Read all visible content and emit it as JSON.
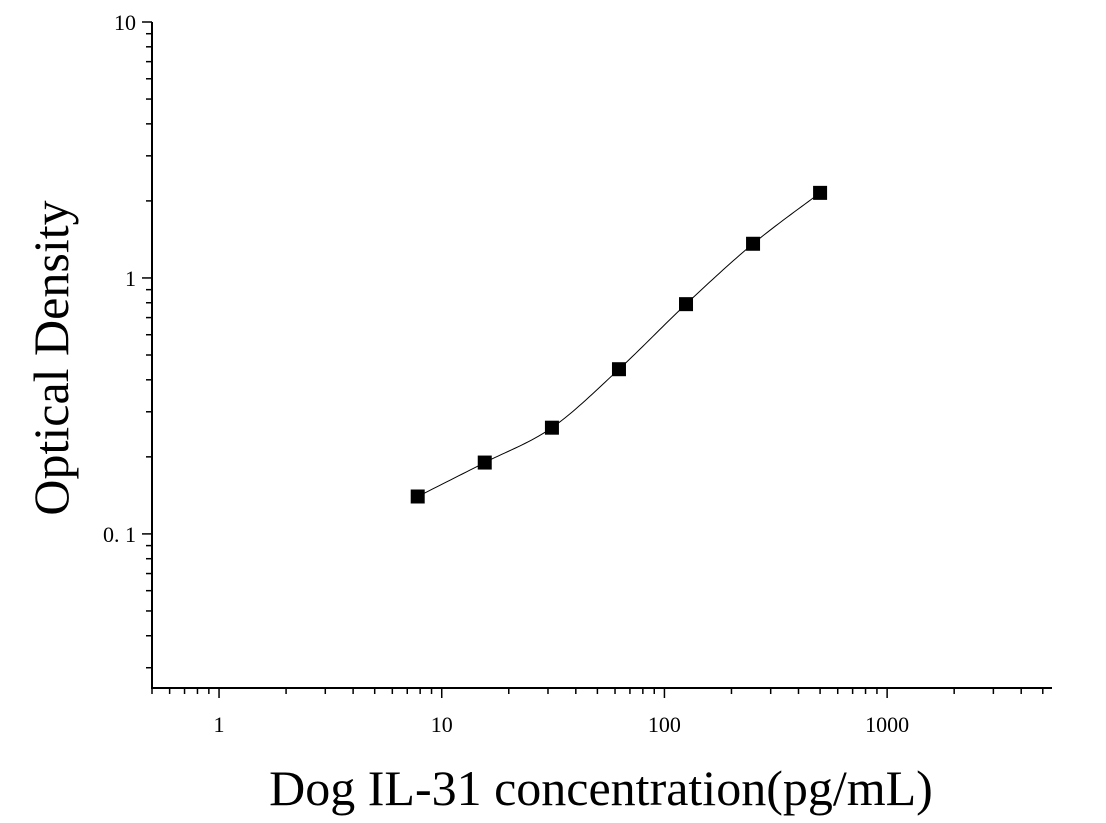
{
  "chart_data": {
    "type": "scatter",
    "title": "",
    "xlabel": "Dog IL-31 concentration(pg/mL)",
    "ylabel": "Optical Density",
    "x_scale": "log",
    "y_scale": "log",
    "xlim": [
      0.5,
      5500
    ],
    "ylim": [
      0.025,
      10
    ],
    "x_ticks": [
      {
        "value": 1,
        "label": "1"
      },
      {
        "value": 10,
        "label": "10"
      },
      {
        "value": 100,
        "label": "100"
      },
      {
        "value": 1000,
        "label": "1000"
      }
    ],
    "y_ticks": [
      {
        "value": 0.1,
        "label": "0. 1"
      },
      {
        "value": 1,
        "label": "1"
      },
      {
        "value": 10,
        "label": "10"
      }
    ],
    "grid": false,
    "legend": "none",
    "series": [
      {
        "marker": "square",
        "color": "#000000",
        "fit_line": true,
        "x": [
          7.8,
          15.6,
          31.25,
          62.5,
          125,
          250,
          500
        ],
        "y": [
          0.14,
          0.19,
          0.26,
          0.44,
          0.79,
          1.36,
          2.15
        ]
      }
    ]
  }
}
